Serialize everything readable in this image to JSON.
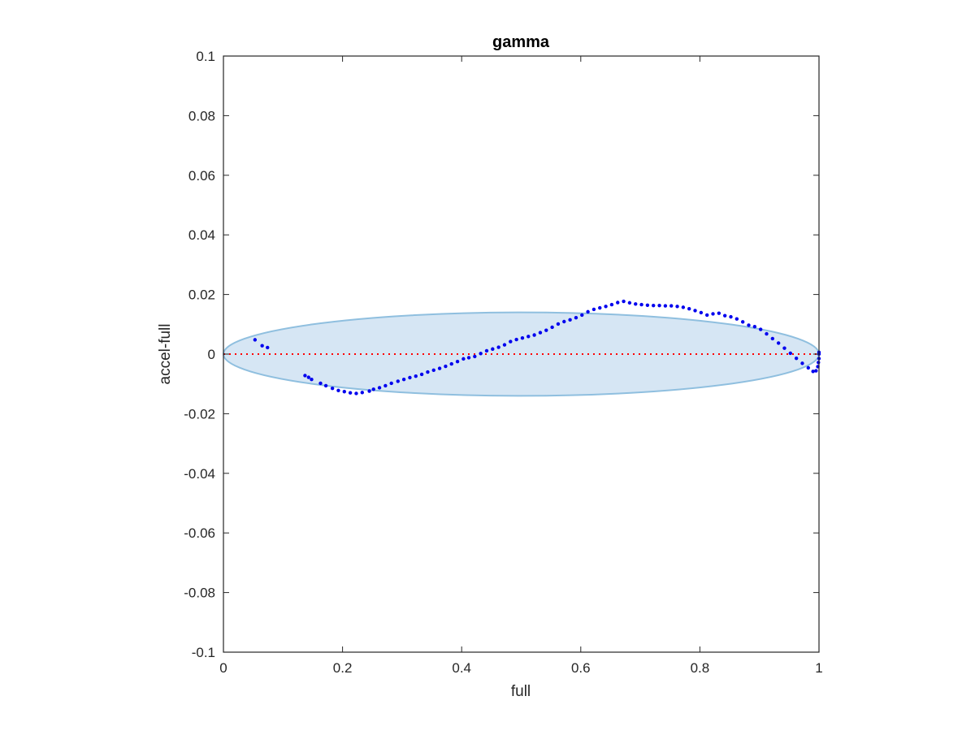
{
  "chart_data": {
    "type": "scatter",
    "title": "gamma",
    "xlabel": "full",
    "ylabel": "accel-full",
    "xlim": [
      0,
      1
    ],
    "ylim": [
      -0.1,
      0.1
    ],
    "xticks": [
      "0",
      "0.2",
      "0.4",
      "0.6",
      "0.8",
      "1"
    ],
    "yticks": [
      "-0.1",
      "-0.08",
      "-0.06",
      "-0.04",
      "-0.02",
      "0",
      "0.02",
      "0.04",
      "0.06",
      "0.08",
      "0.1"
    ],
    "xtick_values": [
      0,
      0.2,
      0.4,
      0.6,
      0.8,
      1
    ],
    "ytick_values": [
      -0.1,
      -0.08,
      -0.06,
      -0.04,
      -0.02,
      0,
      0.02,
      0.04,
      0.06,
      0.08,
      0.1
    ],
    "grid": false,
    "box": true,
    "reference_line": {
      "y": 0,
      "style": "dotted",
      "color": "#ff0000"
    },
    "ellipse": {
      "cx": 0.5,
      "cy": 0,
      "rx": 0.5,
      "ry": 0.014,
      "fill": "#d6e6f4",
      "stroke": "#8fbfdf"
    },
    "series_color": "#0000ee",
    "points": [
      [
        0.053,
        0.0048
      ],
      [
        0.065,
        0.0028
      ],
      [
        0.074,
        0.0022
      ],
      [
        0.137,
        -0.0072
      ],
      [
        0.143,
        -0.0078
      ],
      [
        0.148,
        -0.0085
      ],
      [
        0.163,
        -0.0098
      ],
      [
        0.172,
        -0.0106
      ],
      [
        0.183,
        -0.0115
      ],
      [
        0.193,
        -0.0122
      ],
      [
        0.203,
        -0.0126
      ],
      [
        0.213,
        -0.013
      ],
      [
        0.223,
        -0.0132
      ],
      [
        0.233,
        -0.0129
      ],
      [
        0.245,
        -0.0124
      ],
      [
        0.252,
        -0.0118
      ],
      [
        0.262,
        -0.0113
      ],
      [
        0.272,
        -0.0106
      ],
      [
        0.282,
        -0.0098
      ],
      [
        0.293,
        -0.0091
      ],
      [
        0.303,
        -0.0085
      ],
      [
        0.313,
        -0.0079
      ],
      [
        0.323,
        -0.0074
      ],
      [
        0.333,
        -0.0068
      ],
      [
        0.343,
        -0.006
      ],
      [
        0.353,
        -0.0054
      ],
      [
        0.363,
        -0.0048
      ],
      [
        0.373,
        -0.0041
      ],
      [
        0.383,
        -0.0033
      ],
      [
        0.393,
        -0.0025
      ],
      [
        0.403,
        -0.0016
      ],
      [
        0.412,
        -0.0012
      ],
      [
        0.422,
        -0.0008
      ],
      [
        0.432,
        0.0002
      ],
      [
        0.442,
        0.0011
      ],
      [
        0.452,
        0.0017
      ],
      [
        0.462,
        0.0023
      ],
      [
        0.472,
        0.0031
      ],
      [
        0.482,
        0.0042
      ],
      [
        0.492,
        0.0049
      ],
      [
        0.502,
        0.0054
      ],
      [
        0.512,
        0.0059
      ],
      [
        0.522,
        0.0064
      ],
      [
        0.532,
        0.0072
      ],
      [
        0.542,
        0.008
      ],
      [
        0.552,
        0.009
      ],
      [
        0.562,
        0.0101
      ],
      [
        0.572,
        0.0109
      ],
      [
        0.582,
        0.0115
      ],
      [
        0.592,
        0.0122
      ],
      [
        0.602,
        0.0131
      ],
      [
        0.612,
        0.0142
      ],
      [
        0.622,
        0.015
      ],
      [
        0.632,
        0.0155
      ],
      [
        0.642,
        0.016
      ],
      [
        0.652,
        0.0166
      ],
      [
        0.662,
        0.0173
      ],
      [
        0.672,
        0.0177
      ],
      [
        0.682,
        0.0172
      ],
      [
        0.692,
        0.0168
      ],
      [
        0.702,
        0.0166
      ],
      [
        0.712,
        0.0164
      ],
      [
        0.722,
        0.0163
      ],
      [
        0.732,
        0.0163
      ],
      [
        0.742,
        0.0162
      ],
      [
        0.752,
        0.0162
      ],
      [
        0.762,
        0.016
      ],
      [
        0.772,
        0.0157
      ],
      [
        0.782,
        0.0152
      ],
      [
        0.792,
        0.0146
      ],
      [
        0.802,
        0.0139
      ],
      [
        0.812,
        0.0131
      ],
      [
        0.822,
        0.0135
      ],
      [
        0.832,
        0.0137
      ],
      [
        0.842,
        0.0129
      ],
      [
        0.852,
        0.0125
      ],
      [
        0.862,
        0.0118
      ],
      [
        0.872,
        0.0108
      ],
      [
        0.882,
        0.0097
      ],
      [
        0.892,
        0.0092
      ],
      [
        0.902,
        0.0083
      ],
      [
        0.912,
        0.0068
      ],
      [
        0.922,
        0.0052
      ],
      [
        0.932,
        0.0037
      ],
      [
        0.942,
        0.002
      ],
      [
        0.952,
        0.0003
      ],
      [
        0.962,
        -0.0014
      ],
      [
        0.972,
        -0.0031
      ],
      [
        0.982,
        -0.0046
      ],
      [
        0.99,
        -0.0058
      ],
      [
        0.995,
        -0.0056
      ],
      [
        0.998,
        -0.0042
      ],
      [
        0.999,
        -0.0028
      ],
      [
        1.0,
        -0.0015
      ],
      [
        1.0,
        0.0
      ],
      [
        1.0,
        0.0006
      ]
    ]
  }
}
